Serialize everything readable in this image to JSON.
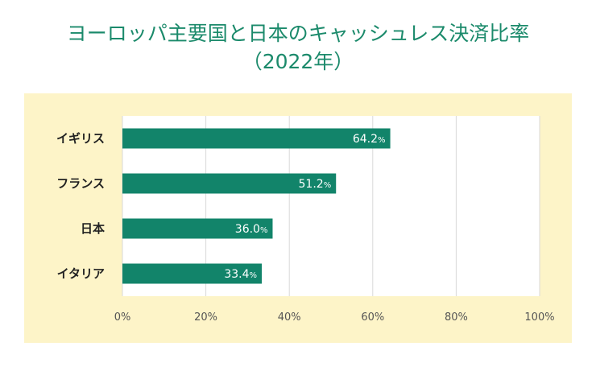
{
  "title": {
    "line1": "ヨーロッパ主要国と日本のキャッシュレス決済比率",
    "line2": "（2022年）"
  },
  "colors": {
    "title": "#1b8a6b",
    "bar": "#12846a",
    "panel_bg": "#fdf4c8",
    "plot_bg": "#ffffff",
    "grid": "#d9d9d9"
  },
  "chart_data": {
    "type": "bar",
    "orientation": "horizontal",
    "categories": [
      "イギリス",
      "フランス",
      "日本",
      "イタリア"
    ],
    "values": [
      64.2,
      51.2,
      36.0,
      33.4
    ],
    "value_labels": [
      "64.2",
      "51.2",
      "36.0",
      "33.4"
    ],
    "value_unit": "%",
    "xlim": [
      0,
      100
    ],
    "xticks": [
      "0%",
      "20%",
      "40%",
      "60%",
      "80%",
      "100%"
    ],
    "grid": true
  }
}
